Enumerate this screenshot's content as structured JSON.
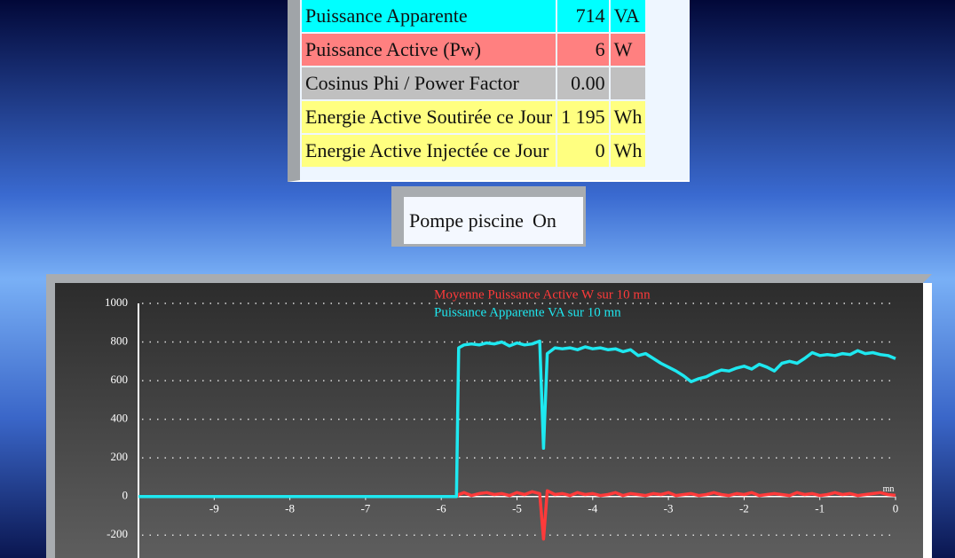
{
  "table": {
    "rows": [
      [
        "Puissance Apparente",
        "714",
        "VA"
      ],
      [
        "Puissance Active (Pw)",
        "6",
        "W"
      ],
      [
        "Cosinus Phi / Power Factor",
        "0.00"
      ],
      [
        "Energie Active Soutirée ce Jour",
        "1 195",
        "Wh"
      ],
      [
        "Energie Active Injectée ce Jour",
        "0",
        "Wh"
      ]
    ]
  },
  "status": {
    "label": "Pompe piscine",
    "state": "On"
  },
  "chart_data": {
    "type": "line",
    "x_label": "mn",
    "x": [
      -10,
      -5.8,
      -5.77,
      -5.7,
      -5.6,
      -5.5,
      -5.4,
      -5.3,
      -5.2,
      -5.1,
      -5.0,
      -4.9,
      -4.8,
      -4.7,
      -4.65,
      -4.6,
      -4.5,
      -4.4,
      -4.3,
      -4.2,
      -4.1,
      -4.0,
      -3.9,
      -3.8,
      -3.7,
      -3.6,
      -3.5,
      -3.4,
      -3.3,
      -3.2,
      -3.1,
      -3.0,
      -2.9,
      -2.8,
      -2.7,
      -2.6,
      -2.5,
      -2.4,
      -2.3,
      -2.2,
      -2.1,
      -2.0,
      -1.9,
      -1.8,
      -1.7,
      -1.6,
      -1.5,
      -1.4,
      -1.3,
      -1.2,
      -1.1,
      -1.0,
      -0.9,
      -0.8,
      -0.7,
      -0.6,
      -0.5,
      -0.4,
      -0.3,
      -0.2,
      -0.1,
      0
    ],
    "series": [
      {
        "name": "Moyenne Puissance Active W sur 10 mn",
        "color": "#ff3a3a",
        "values": [
          0,
          0,
          10,
          20,
          5,
          15,
          20,
          10,
          15,
          5,
          20,
          10,
          25,
          15,
          -220,
          30,
          10,
          15,
          5,
          20,
          10,
          15,
          5,
          10,
          20,
          5,
          15,
          10,
          5,
          15,
          10,
          20,
          5,
          10,
          15,
          5,
          10,
          20,
          10,
          5,
          15,
          10,
          20,
          5,
          10,
          15,
          10,
          5,
          20,
          10,
          15,
          5,
          10,
          20,
          10,
          15,
          5,
          10,
          15,
          20,
          10,
          6
        ]
      },
      {
        "name": "Puissance Apparente VA sur 10 mn",
        "color": "#1ee8f0",
        "values": [
          0,
          0,
          770,
          785,
          790,
          785,
          795,
          790,
          800,
          780,
          795,
          785,
          790,
          805,
          250,
          740,
          770,
          765,
          770,
          760,
          775,
          765,
          770,
          760,
          765,
          750,
          760,
          730,
          740,
          715,
          690,
          670,
          650,
          625,
          595,
          610,
          620,
          640,
          655,
          650,
          665,
          675,
          660,
          685,
          670,
          650,
          690,
          700,
          690,
          715,
          745,
          730,
          735,
          730,
          740,
          735,
          755,
          740,
          745,
          735,
          730,
          714
        ]
      }
    ],
    "xlim": [
      -10,
      0
    ],
    "xticks": [
      -9,
      -8,
      -7,
      -6,
      -5,
      -4,
      -3,
      -2,
      -1,
      0
    ],
    "ylim": [
      -300,
      1000
    ],
    "yticks": [
      1000,
      800,
      600,
      400,
      200,
      0,
      -200
    ],
    "grid": true
  }
}
